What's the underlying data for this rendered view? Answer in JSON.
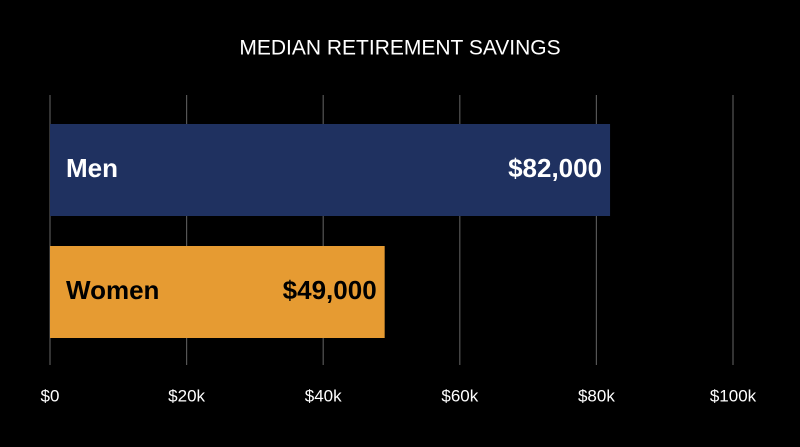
{
  "chart_data": {
    "type": "hbar",
    "title": "MEDIAN RETIREMENT SAVINGS",
    "categories": [
      "Men",
      "Women"
    ],
    "values": [
      82000,
      49000
    ],
    "value_labels": [
      "$82,000",
      "$49,000"
    ],
    "colors": [
      "#1f3160",
      "#e69b32"
    ],
    "xlim": [
      0,
      100000
    ],
    "xticks": [
      {
        "value": 0,
        "label": "$0"
      },
      {
        "value": 20000,
        "label": "$20k"
      },
      {
        "value": 40000,
        "label": "$40k"
      },
      {
        "value": 60000,
        "label": "$60k"
      },
      {
        "value": 80000,
        "label": "$80k"
      },
      {
        "value": 100000,
        "label": "$100k"
      }
    ],
    "grid": true
  }
}
